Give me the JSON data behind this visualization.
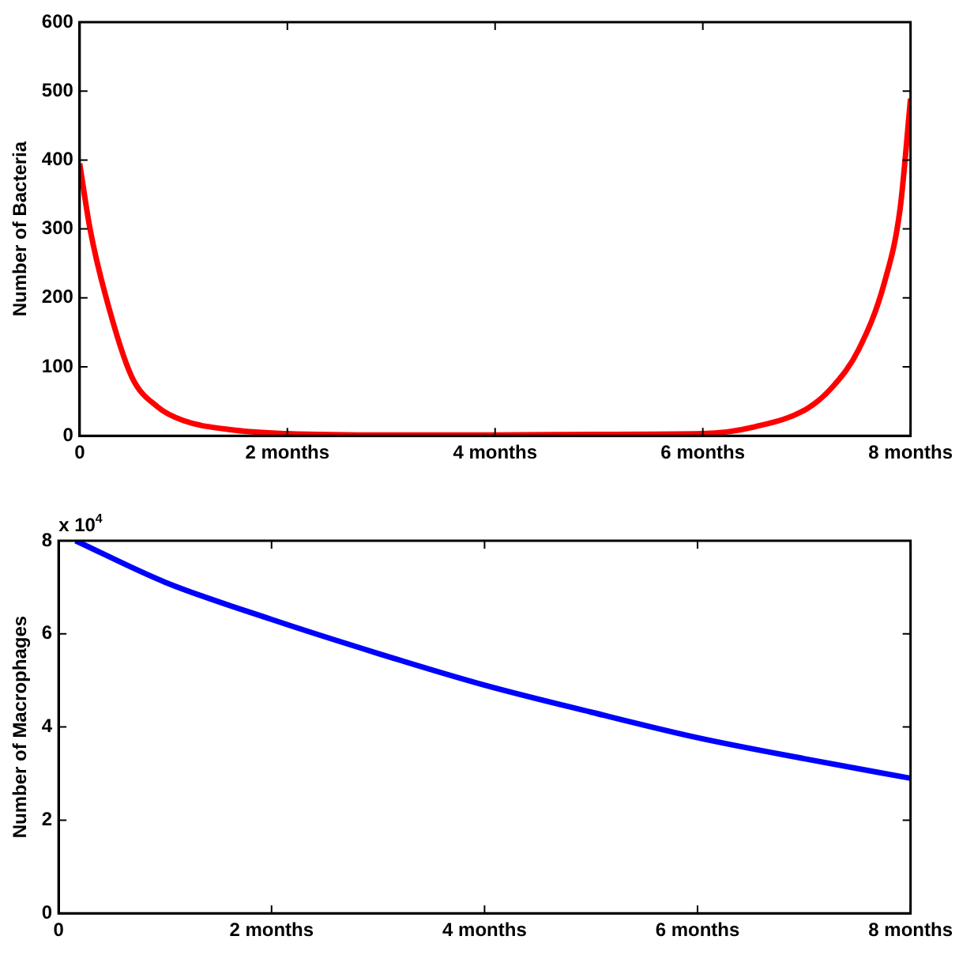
{
  "chart_data": [
    {
      "type": "line",
      "ylabel": "Number of Bacteria",
      "x": [
        0,
        0.1,
        0.25,
        0.5,
        0.75,
        1,
        1.5,
        2,
        3,
        4,
        5,
        6,
        6.5,
        7,
        7.25,
        7.5,
        7.75,
        7.9,
        8
      ],
      "series": [
        {
          "color": "#ff0000",
          "values": [
            395,
            300,
            203,
            86,
            42,
            22,
            8,
            3,
            1,
            1,
            2,
            3,
            13,
            39,
            71,
            125,
            223,
            330,
            489
          ]
        }
      ],
      "xlim": [
        0,
        8
      ],
      "xticks": [
        0,
        {
          "value": 2,
          "label": "2 months"
        },
        {
          "value": 4,
          "label": "4 months"
        },
        {
          "value": 6,
          "label": "6 months"
        },
        {
          "value": 8,
          "label": "8 months"
        }
      ],
      "ylim": [
        0,
        600
      ],
      "yticks": [
        0,
        100,
        200,
        300,
        400,
        500,
        600
      ],
      "grid": false,
      "legend": false,
      "marker": "none",
      "line_style": "solid"
    },
    {
      "type": "line",
      "ylabel": "Number of Macrophages",
      "annotations": [
        "x 10$^{4}$"
      ],
      "x": [
        0.16,
        1,
        2,
        3,
        4,
        5,
        6,
        7,
        8
      ],
      "series": [
        {
          "color": "#0000ff",
          "values": [
            8,
            7.11,
            6.31,
            5.58,
            4.9,
            4.32,
            3.77,
            3.32,
            2.9
          ]
        }
      ],
      "xlim": [
        0,
        8
      ],
      "xticks": [
        0,
        {
          "value": 2,
          "label": "2 months"
        },
        {
          "value": 4,
          "label": "4 months"
        },
        {
          "value": 6,
          "label": "6 months"
        },
        {
          "value": 8,
          "label": "8 months"
        }
      ],
      "ylim": [
        0,
        8
      ],
      "yticks": [
        0,
        2,
        4,
        6,
        8
      ],
      "grid": false,
      "legend": false,
      "marker": "none",
      "line_style": "solid"
    }
  ]
}
